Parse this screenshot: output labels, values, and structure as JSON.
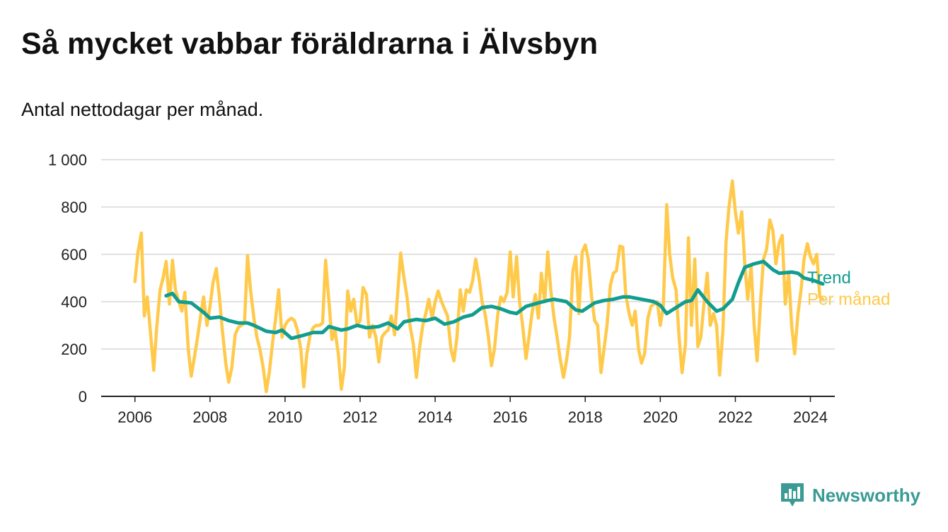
{
  "title": "Så mycket vabbar föräldrarna i Älvsbyn",
  "subtitle": "Antal nettodagar per månad.",
  "brand": {
    "name": "Newsworthy",
    "icon": "newsworthy-logo-icon"
  },
  "colors": {
    "monthly": "#FFC94A",
    "trend": "#119D8F",
    "grid": "#D9D9D9",
    "axis": "#222222",
    "brand": "#3A9B94"
  },
  "chart_data": {
    "type": "line",
    "x_unit": "year",
    "ylim": [
      0,
      1000
    ],
    "yticks": [
      0,
      200,
      400,
      600,
      800,
      1000
    ],
    "ytick_labels": [
      "0",
      "200",
      "400",
      "600",
      "800",
      "1 000"
    ],
    "xlim": [
      2005.1,
      2024.65
    ],
    "xticks": [
      2006,
      2008,
      2010,
      2012,
      2014,
      2016,
      2018,
      2020,
      2022,
      2024
    ],
    "xtick_labels": [
      "2006",
      "2008",
      "2010",
      "2012",
      "2014",
      "2016",
      "2018",
      "2020",
      "2022",
      "2024"
    ],
    "grid": true,
    "legend_placement": "line-end labels",
    "series": [
      {
        "name": "Per månad",
        "color": "#FFC94A",
        "x": [
          2006.0,
          2006.08,
          2006.17,
          2006.25,
          2006.33,
          2006.42,
          2006.5,
          2006.58,
          2006.67,
          2006.75,
          2006.83,
          2006.92,
          2007.0,
          2007.08,
          2007.17,
          2007.25,
          2007.33,
          2007.42,
          2007.5,
          2007.58,
          2007.67,
          2007.75,
          2007.83,
          2007.92,
          2008.0,
          2008.08,
          2008.17,
          2008.25,
          2008.33,
          2008.42,
          2008.5,
          2008.58,
          2008.67,
          2008.75,
          2008.83,
          2008.92,
          2009.0,
          2009.08,
          2009.17,
          2009.25,
          2009.33,
          2009.42,
          2009.5,
          2009.58,
          2009.67,
          2009.75,
          2009.83,
          2009.92,
          2010.0,
          2010.08,
          2010.17,
          2010.25,
          2010.33,
          2010.42,
          2010.5,
          2010.58,
          2010.67,
          2010.75,
          2010.83,
          2010.92,
          2011.0,
          2011.08,
          2011.17,
          2011.25,
          2011.33,
          2011.42,
          2011.5,
          2011.58,
          2011.67,
          2011.75,
          2011.83,
          2011.92,
          2012.0,
          2012.08,
          2012.17,
          2012.25,
          2012.33,
          2012.42,
          2012.5,
          2012.58,
          2012.67,
          2012.75,
          2012.83,
          2012.92,
          2013.0,
          2013.08,
          2013.17,
          2013.25,
          2013.33,
          2013.42,
          2013.5,
          2013.58,
          2013.67,
          2013.75,
          2013.83,
          2013.92,
          2014.0,
          2014.08,
          2014.17,
          2014.25,
          2014.33,
          2014.42,
          2014.5,
          2014.58,
          2014.67,
          2014.75,
          2014.83,
          2014.92,
          2015.0,
          2015.08,
          2015.17,
          2015.25,
          2015.33,
          2015.42,
          2015.5,
          2015.58,
          2015.67,
          2015.75,
          2015.83,
          2015.92,
          2016.0,
          2016.08,
          2016.17,
          2016.25,
          2016.33,
          2016.42,
          2016.5,
          2016.58,
          2016.67,
          2016.75,
          2016.83,
          2016.92,
          2017.0,
          2017.08,
          2017.17,
          2017.25,
          2017.33,
          2017.42,
          2017.5,
          2017.58,
          2017.67,
          2017.75,
          2017.83,
          2017.92,
          2018.0,
          2018.08,
          2018.17,
          2018.25,
          2018.33,
          2018.42,
          2018.5,
          2018.58,
          2018.67,
          2018.75,
          2018.83,
          2018.92,
          2019.0,
          2019.08,
          2019.17,
          2019.25,
          2019.33,
          2019.42,
          2019.5,
          2019.58,
          2019.67,
          2019.75,
          2019.83,
          2019.92,
          2020.0,
          2020.08,
          2020.17,
          2020.25,
          2020.33,
          2020.42,
          2020.5,
          2020.58,
          2020.67,
          2020.75,
          2020.83,
          2020.92,
          2021.0,
          2021.08,
          2021.17,
          2021.25,
          2021.33,
          2021.42,
          2021.5,
          2021.58,
          2021.67,
          2021.75,
          2021.83,
          2021.92,
          2022.0,
          2022.08,
          2022.17,
          2022.25,
          2022.33,
          2022.42,
          2022.5,
          2022.58,
          2022.67,
          2022.75,
          2022.83,
          2022.92,
          2023.0,
          2023.08,
          2023.17,
          2023.25,
          2023.33,
          2023.42,
          2023.5,
          2023.58,
          2023.67,
          2023.75,
          2023.83,
          2023.92,
          2024.0,
          2024.08,
          2024.17,
          2024.25,
          2024.33
        ],
        "values": [
          485,
          610,
          690,
          340,
          420,
          260,
          110,
          290,
          450,
          500,
          570,
          390,
          575,
          450,
          400,
          360,
          440,
          200,
          85,
          160,
          250,
          340,
          420,
          300,
          380,
          480,
          540,
          420,
          280,
          140,
          60,
          120,
          260,
          290,
          300,
          310,
          595,
          450,
          330,
          250,
          200,
          120,
          20,
          100,
          230,
          330,
          450,
          250,
          300,
          320,
          330,
          320,
          280,
          200,
          40,
          180,
          260,
          290,
          300,
          300,
          310,
          575,
          400,
          240,
          280,
          180,
          30,
          120,
          445,
          360,
          410,
          300,
          320,
          460,
          430,
          250,
          300,
          250,
          145,
          250,
          270,
          280,
          340,
          260,
          430,
          605,
          500,
          420,
          300,
          220,
          80,
          200,
          300,
          350,
          410,
          330,
          400,
          445,
          400,
          370,
          340,
          200,
          150,
          250,
          450,
          360,
          450,
          440,
          490,
          580,
          500,
          400,
          350,
          250,
          130,
          200,
          350,
          420,
          400,
          440,
          610,
          420,
          590,
          400,
          300,
          160,
          250,
          350,
          430,
          330,
          520,
          400,
          610,
          450,
          330,
          250,
          160,
          80,
          150,
          250,
          530,
          590,
          350,
          610,
          640,
          580,
          420,
          320,
          300,
          100,
          200,
          300,
          470,
          520,
          530,
          635,
          630,
          430,
          350,
          300,
          360,
          200,
          140,
          180,
          330,
          380,
          390,
          400,
          300,
          380,
          810,
          600,
          500,
          450,
          250,
          100,
          220,
          670,
          300,
          580,
          210,
          250,
          400,
          520,
          300,
          350,
          300,
          90,
          280,
          650,
          800,
          910,
          780,
          690,
          780,
          560,
          410,
          550,
          300,
          150,
          400,
          580,
          620,
          745,
          700,
          560,
          650,
          680,
          390,
          520,
          300,
          180,
          350,
          450,
          580,
          645,
          590,
          560,
          600,
          420,
          410
        ]
      },
      {
        "name": "Trend",
        "color": "#119D8F",
        "x": [
          2006.83,
          2007.0,
          2007.17,
          2007.5,
          2007.83,
          2008.0,
          2008.25,
          2008.5,
          2008.75,
          2009.0,
          2009.17,
          2009.5,
          2009.75,
          2009.92,
          2010.17,
          2010.42,
          2010.75,
          2011.0,
          2011.17,
          2011.5,
          2011.67,
          2011.92,
          2012.17,
          2012.5,
          2012.75,
          2013.0,
          2013.17,
          2013.5,
          2013.75,
          2014.0,
          2014.25,
          2014.5,
          2014.75,
          2015.0,
          2015.25,
          2015.5,
          2015.75,
          2016.0,
          2016.17,
          2016.42,
          2016.75,
          2017.0,
          2017.17,
          2017.5,
          2017.75,
          2017.92,
          2018.25,
          2018.5,
          2018.75,
          2019.0,
          2019.17,
          2019.5,
          2019.83,
          2020.0,
          2020.17,
          2020.42,
          2020.67,
          2020.83,
          2021.0,
          2021.25,
          2021.5,
          2021.67,
          2021.92,
          2022.08,
          2022.25,
          2022.5,
          2022.75,
          2023.0,
          2023.17,
          2023.5,
          2023.67,
          2023.83,
          2024.08,
          2024.33
        ],
        "values": [
          425,
          435,
          400,
          395,
          355,
          330,
          335,
          320,
          310,
          310,
          300,
          275,
          270,
          280,
          245,
          255,
          270,
          270,
          295,
          280,
          285,
          300,
          290,
          295,
          310,
          285,
          315,
          325,
          320,
          330,
          305,
          315,
          335,
          345,
          375,
          380,
          370,
          355,
          350,
          380,
          395,
          405,
          410,
          400,
          365,
          360,
          395,
          405,
          410,
          420,
          420,
          410,
          400,
          385,
          350,
          375,
          400,
          405,
          450,
          400,
          360,
          370,
          410,
          480,
          545,
          560,
          570,
          535,
          520,
          525,
          520,
          500,
          490,
          475
        ]
      }
    ]
  }
}
